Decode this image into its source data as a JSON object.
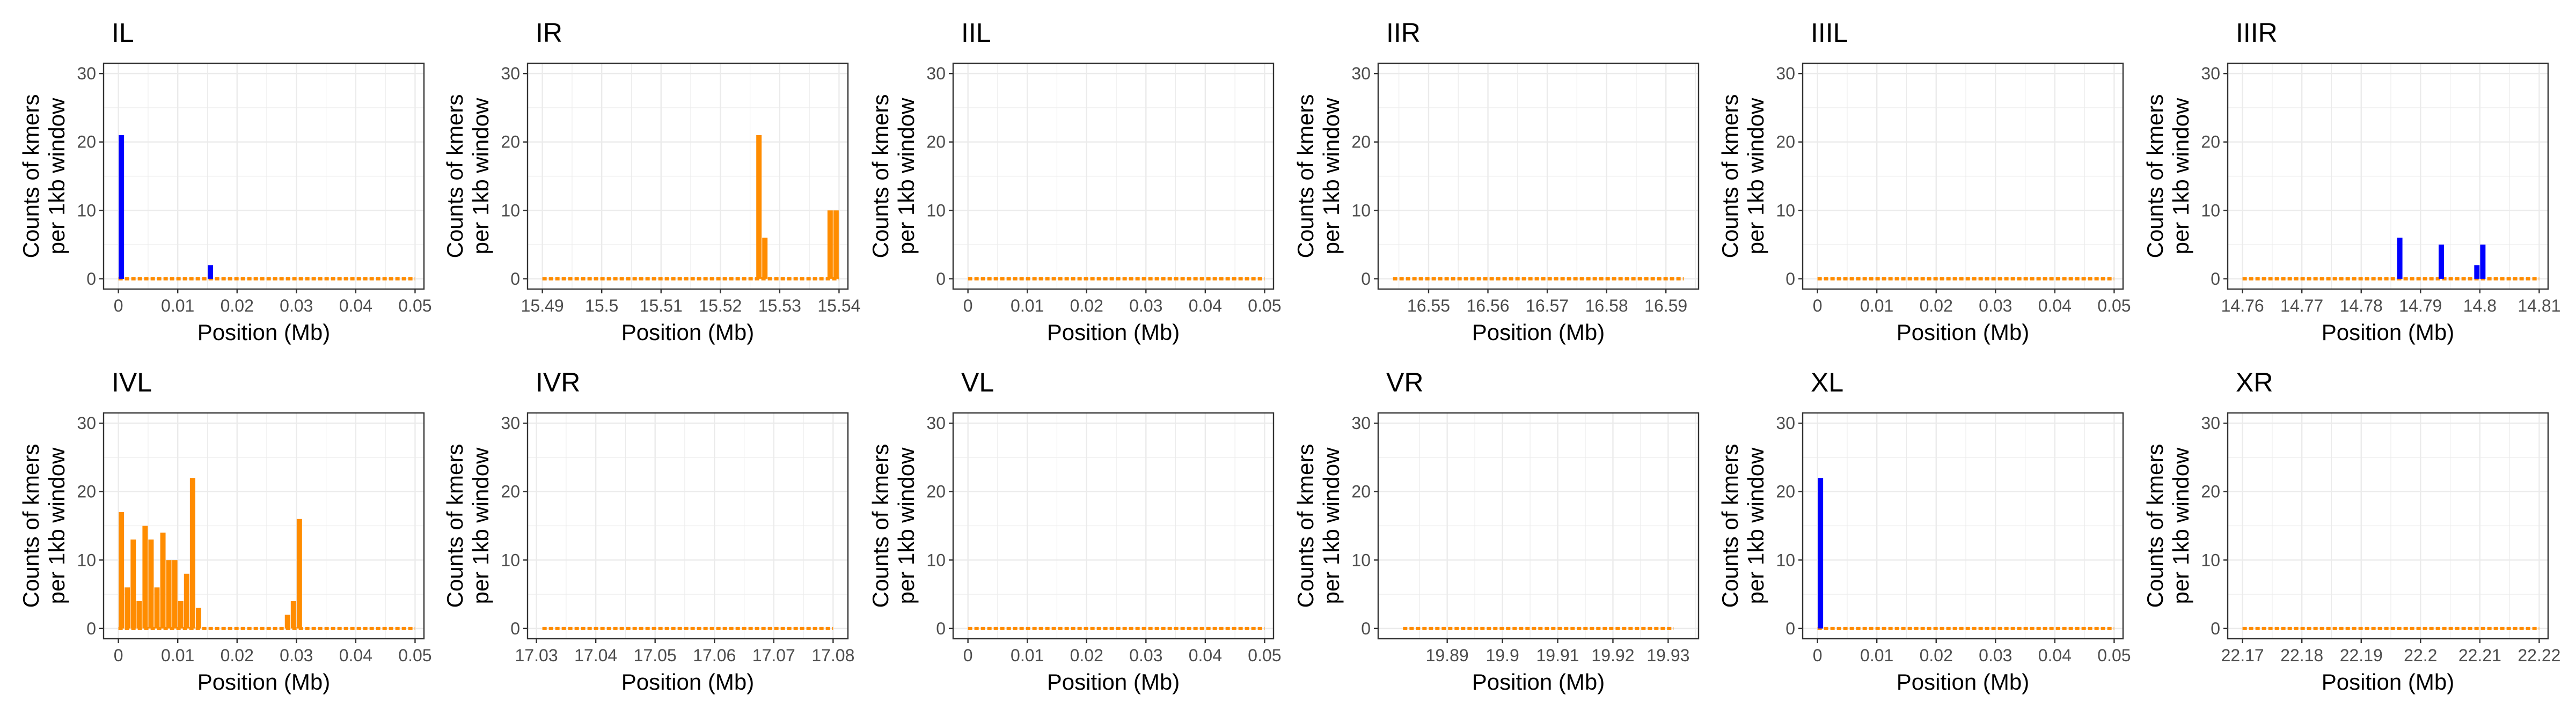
{
  "figure": {
    "ylabel_lines": [
      "Counts of kmers",
      "per 1kb window"
    ],
    "xlabel": "Position (Mb)",
    "ylim": [
      -1.5,
      31.5
    ],
    "y_ticks": [
      0,
      10,
      20,
      30
    ],
    "colors": {
      "orange": "#FF8C00",
      "blue": "#0000FF",
      "grid": "#EBEBEB",
      "frame": "#333333",
      "tick_text": "#4D4D4D",
      "text": "#000000"
    }
  },
  "chart_data": [
    {
      "type": "bar",
      "title": "IL",
      "xlabel": "Position (Mb)",
      "ylabel": "Counts of kmers per 1kb window",
      "xlim": [
        -0.0025,
        0.0515
      ],
      "x_ticks": [
        0,
        0.01,
        0.02,
        0.03,
        0.04,
        0.05
      ],
      "x_tick_labels": [
        "0",
        "0.01",
        "0.02",
        "0.03",
        "0.04",
        "0.05"
      ],
      "ylim": [
        -1.5,
        31.5
      ],
      "baseline_range": [
        0,
        0.05
      ],
      "series": [
        {
          "color": "#0000FF",
          "x": [
            0.0005,
            0.0155
          ],
          "values": [
            21,
            2
          ]
        },
        {
          "color": "#FF8C00",
          "x": [],
          "values": []
        }
      ]
    },
    {
      "type": "bar",
      "title": "IR",
      "xlabel": "Position (Mb)",
      "ylabel": "Counts of kmers per 1kb window",
      "xlim": [
        15.4875,
        15.5415
      ],
      "x_ticks": [
        15.49,
        15.5,
        15.51,
        15.52,
        15.53,
        15.54
      ],
      "x_tick_labels": [
        "15.49",
        "15.5",
        "15.51",
        "15.52",
        "15.53",
        "15.54"
      ],
      "ylim": [
        -1.5,
        31.5
      ],
      "baseline_range": [
        15.49,
        15.54
      ],
      "series": [
        {
          "color": "#FF8C00",
          "x": [
            15.5265,
            15.5275,
            15.5385,
            15.5395
          ],
          "values": [
            21,
            6,
            10,
            10
          ]
        }
      ]
    },
    {
      "type": "bar",
      "title": "IIL",
      "xlabel": "Position (Mb)",
      "ylabel": "Counts of kmers per 1kb window",
      "xlim": [
        -0.0025,
        0.0515
      ],
      "x_ticks": [
        0,
        0.01,
        0.02,
        0.03,
        0.04,
        0.05
      ],
      "x_tick_labels": [
        "0",
        "0.01",
        "0.02",
        "0.03",
        "0.04",
        "0.05"
      ],
      "ylim": [
        -1.5,
        31.5
      ],
      "baseline_range": [
        0,
        0.05
      ],
      "series": [
        {
          "color": "#FF8C00",
          "x": [],
          "values": []
        }
      ]
    },
    {
      "type": "bar",
      "title": "IIR",
      "xlabel": "Position (Mb)",
      "ylabel": "Counts of kmers per 1kb window",
      "xlim": [
        16.5415,
        16.5955
      ],
      "x_ticks": [
        16.55,
        16.56,
        16.57,
        16.58,
        16.59
      ],
      "x_tick_labels": [
        "16.55",
        "16.56",
        "16.57",
        "16.58",
        "16.59"
      ],
      "ylim": [
        -1.5,
        31.5
      ],
      "baseline_range": [
        16.544,
        16.593
      ],
      "series": [
        {
          "color": "#FF8C00",
          "x": [],
          "values": []
        }
      ]
    },
    {
      "type": "bar",
      "title": "IIIL",
      "xlabel": "Position (Mb)",
      "ylabel": "Counts of kmers per 1kb window",
      "xlim": [
        -0.0025,
        0.0515
      ],
      "x_ticks": [
        0,
        0.01,
        0.02,
        0.03,
        0.04,
        0.05
      ],
      "x_tick_labels": [
        "0",
        "0.01",
        "0.02",
        "0.03",
        "0.04",
        "0.05"
      ],
      "ylim": [
        -1.5,
        31.5
      ],
      "baseline_range": [
        0,
        0.05
      ],
      "series": [
        {
          "color": "#FF8C00",
          "x": [],
          "values": []
        }
      ]
    },
    {
      "type": "bar",
      "title": "IIIR",
      "xlabel": "Position (Mb)",
      "ylabel": "Counts of kmers per 1kb window",
      "xlim": [
        14.7575,
        14.8115
      ],
      "x_ticks": [
        14.76,
        14.77,
        14.78,
        14.79,
        14.8,
        14.81
      ],
      "x_tick_labels": [
        "14.76",
        "14.77",
        "14.78",
        "14.79",
        "14.8",
        "14.81"
      ],
      "ylim": [
        -1.5,
        31.5
      ],
      "baseline_range": [
        14.76,
        14.81
      ],
      "series": [
        {
          "color": "#0000FF",
          "x": [
            14.7865,
            14.7935,
            14.7995,
            14.8005
          ],
          "values": [
            6,
            5,
            2,
            5
          ]
        },
        {
          "color": "#FF8C00",
          "x": [],
          "values": []
        }
      ]
    },
    {
      "type": "bar",
      "title": "IVL",
      "xlabel": "Position (Mb)",
      "ylabel": "Counts of kmers per 1kb window",
      "xlim": [
        -0.0025,
        0.0515
      ],
      "x_ticks": [
        0,
        0.01,
        0.02,
        0.03,
        0.04,
        0.05
      ],
      "x_tick_labels": [
        "0",
        "0.01",
        "0.02",
        "0.03",
        "0.04",
        "0.05"
      ],
      "ylim": [
        -1.5,
        31.5
      ],
      "baseline_range": [
        0,
        0.05
      ],
      "series": [
        {
          "color": "#FF8C00",
          "x": [
            0.0005,
            0.0015,
            0.0025,
            0.0035,
            0.0045,
            0.0055,
            0.0065,
            0.0075,
            0.0085,
            0.0095,
            0.0105,
            0.0115,
            0.0125,
            0.0135,
            0.0285,
            0.0295,
            0.0305
          ],
          "values": [
            17,
            6,
            13,
            4,
            15,
            13,
            6,
            14,
            10,
            10,
            4,
            8,
            22,
            3,
            2,
            4,
            16
          ]
        }
      ]
    },
    {
      "type": "bar",
      "title": "IVR",
      "xlabel": "Position (Mb)",
      "ylabel": "Counts of kmers per 1kb window",
      "xlim": [
        17.0285,
        17.0825
      ],
      "x_ticks": [
        17.03,
        17.04,
        17.05,
        17.06,
        17.07,
        17.08
      ],
      "x_tick_labels": [
        "17.03",
        "17.04",
        "17.05",
        "17.06",
        "17.07",
        "17.08"
      ],
      "ylim": [
        -1.5,
        31.5
      ],
      "baseline_range": [
        17.031,
        17.08
      ],
      "series": [
        {
          "color": "#FF8C00",
          "x": [],
          "values": []
        }
      ]
    },
    {
      "type": "bar",
      "title": "VL",
      "xlabel": "Position (Mb)",
      "ylabel": "Counts of kmers per 1kb window",
      "xlim": [
        -0.0025,
        0.0515
      ],
      "x_ticks": [
        0,
        0.01,
        0.02,
        0.03,
        0.04,
        0.05
      ],
      "x_tick_labels": [
        "0",
        "0.01",
        "0.02",
        "0.03",
        "0.04",
        "0.05"
      ],
      "ylim": [
        -1.5,
        31.5
      ],
      "baseline_range": [
        0,
        0.05
      ],
      "series": [
        {
          "color": "#FF8C00",
          "x": [],
          "values": []
        }
      ]
    },
    {
      "type": "bar",
      "title": "VR",
      "xlabel": "Position (Mb)",
      "ylabel": "Counts of kmers per 1kb window",
      "xlim": [
        19.8775,
        19.9355
      ],
      "x_ticks": [
        19.89,
        19.9,
        19.91,
        19.92,
        19.93
      ],
      "x_tick_labels": [
        "19.89",
        "19.9",
        "19.91",
        "19.92",
        "19.93"
      ],
      "ylim": [
        -1.5,
        31.5
      ],
      "baseline_range": [
        19.882,
        19.931
      ],
      "series": [
        {
          "color": "#FF8C00",
          "x": [],
          "values": []
        }
      ]
    },
    {
      "type": "bar",
      "title": "XL",
      "xlabel": "Position (Mb)",
      "ylabel": "Counts of kmers per 1kb window",
      "xlim": [
        -0.0025,
        0.0515
      ],
      "x_ticks": [
        0,
        0.01,
        0.02,
        0.03,
        0.04,
        0.05
      ],
      "x_tick_labels": [
        "0",
        "0.01",
        "0.02",
        "0.03",
        "0.04",
        "0.05"
      ],
      "ylim": [
        -1.5,
        31.5
      ],
      "baseline_range": [
        0,
        0.05
      ],
      "series": [
        {
          "color": "#0000FF",
          "x": [
            0.0005
          ],
          "values": [
            22
          ]
        },
        {
          "color": "#FF8C00",
          "x": [],
          "values": []
        }
      ]
    },
    {
      "type": "bar",
      "title": "XR",
      "xlabel": "Position (Mb)",
      "ylabel": "Counts of kmers per 1kb window",
      "xlim": [
        22.1675,
        22.2215
      ],
      "x_ticks": [
        22.17,
        22.18,
        22.19,
        22.2,
        22.21,
        22.22
      ],
      "x_tick_labels": [
        "22.17",
        "22.18",
        "22.19",
        "22.2",
        "22.21",
        "22.22"
      ],
      "ylim": [
        -1.5,
        31.5
      ],
      "baseline_range": [
        22.17,
        22.22
      ],
      "series": [
        {
          "color": "#FF8C00",
          "x": [],
          "values": []
        }
      ]
    }
  ]
}
